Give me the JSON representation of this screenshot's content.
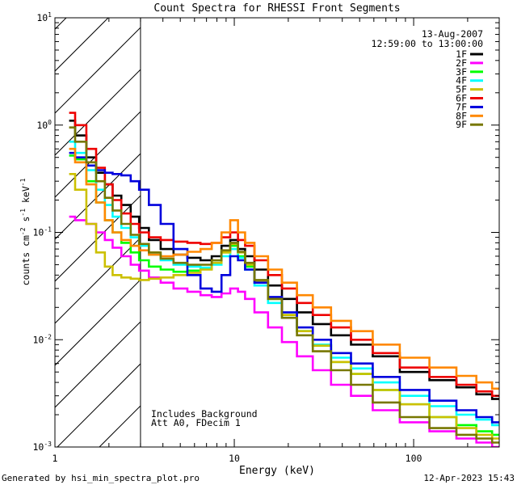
{
  "chart_data": {
    "type": "line",
    "step": true,
    "title": "Count Spectra for RHESSI Front Segments",
    "xlabel": "Energy (keV)",
    "ylabel_parts": {
      "pre": "counts cm",
      "exp1": "-2",
      "mid": " s",
      "exp2": "-1",
      "post": " keV",
      "exp3": "-1"
    },
    "x_scale": "log",
    "y_scale": "log",
    "xlim": [
      1,
      300
    ],
    "ylim": [
      0.001,
      10
    ],
    "x_ticks": [
      {
        "value": 1,
        "label": "1"
      },
      {
        "value": 10,
        "label": "10"
      },
      {
        "value": 100,
        "label": "100"
      }
    ],
    "y_ticks": [
      {
        "value": 10,
        "base": "10",
        "exp": "1"
      },
      {
        "value": 1,
        "base": "10",
        "exp": "0"
      },
      {
        "value": 0.1,
        "base": "10",
        "exp": "-1"
      },
      {
        "value": 0.01,
        "base": "10",
        "exp": "-2"
      },
      {
        "value": 0.001,
        "base": "10",
        "exp": "-3"
      }
    ],
    "date": "13-Aug-2007",
    "time_range": "12:59:00 to 13:00:00",
    "shaded_region_kev": [
      1,
      3
    ],
    "annotations": [
      "Includes Background",
      "Att A0, FDecim 1"
    ],
    "series": [
      {
        "name": "1F",
        "color": "#000000",
        "x": [
          1.2,
          1.4,
          1.6,
          1.8,
          2.0,
          2.2,
          2.5,
          2.8,
          3.1,
          3.6,
          4.2,
          5.0,
          6.0,
          7.0,
          8.0,
          9.0,
          10.0,
          11.0,
          12.0,
          14.0,
          17.0,
          20.0,
          25.0,
          30.0,
          40.0,
          50.0,
          70.0,
          100.0,
          150.0,
          200.0,
          250.0,
          300.0
        ],
        "values": [
          1.1,
          0.8,
          0.5,
          0.36,
          0.28,
          0.22,
          0.18,
          0.14,
          0.11,
          0.085,
          0.07,
          0.062,
          0.058,
          0.055,
          0.06,
          0.075,
          0.085,
          0.07,
          0.06,
          0.045,
          0.032,
          0.024,
          0.018,
          0.014,
          0.011,
          0.009,
          0.007,
          0.005,
          0.0042,
          0.0036,
          0.0031,
          0.0028
        ]
      },
      {
        "name": "2F",
        "color": "#ff00ff",
        "x": [
          1.2,
          1.4,
          1.6,
          1.8,
          2.0,
          2.2,
          2.5,
          2.8,
          3.1,
          3.6,
          4.2,
          5.0,
          6.0,
          7.0,
          8.0,
          9.0,
          10.0,
          11.0,
          12.0,
          14.0,
          17.0,
          20.0,
          25.0,
          30.0,
          40.0,
          50.0,
          70.0,
          100.0,
          150.0,
          200.0,
          250.0,
          300.0
        ],
        "values": [
          0.14,
          0.13,
          0.12,
          0.1,
          0.085,
          0.072,
          0.06,
          0.05,
          0.044,
          0.038,
          0.034,
          0.03,
          0.028,
          0.026,
          0.025,
          0.027,
          0.03,
          0.028,
          0.024,
          0.018,
          0.013,
          0.0095,
          0.007,
          0.0052,
          0.0038,
          0.003,
          0.0022,
          0.0017,
          0.0014,
          0.0012,
          0.0011,
          0.001
        ]
      },
      {
        "name": "3F",
        "color": "#00ff00",
        "x": [
          1.2,
          1.4,
          1.6,
          1.8,
          2.0,
          2.2,
          2.5,
          2.8,
          3.1,
          3.6,
          4.2,
          5.0,
          6.0,
          7.0,
          8.0,
          9.0,
          10.0,
          11.0,
          12.0,
          14.0,
          17.0,
          20.0,
          25.0,
          30.0,
          40.0,
          50.0,
          70.0,
          100.0,
          150.0,
          200.0,
          250.0,
          300.0
        ],
        "values": [
          0.52,
          0.48,
          0.3,
          0.19,
          0.13,
          0.1,
          0.08,
          0.065,
          0.055,
          0.048,
          0.045,
          0.043,
          0.044,
          0.046,
          0.052,
          0.065,
          0.075,
          0.06,
          0.048,
          0.034,
          0.024,
          0.017,
          0.012,
          0.0088,
          0.0062,
          0.0048,
          0.0034,
          0.0025,
          0.0019,
          0.0016,
          0.0014,
          0.0013
        ]
      },
      {
        "name": "4F",
        "color": "#00ffff",
        "x": [
          1.2,
          1.4,
          1.6,
          1.8,
          2.0,
          2.2,
          2.5,
          2.8,
          3.1,
          3.6,
          4.2,
          5.0,
          6.0,
          7.0,
          8.0,
          9.0,
          10.0,
          11.0,
          12.0,
          14.0,
          17.0,
          20.0,
          25.0,
          30.0,
          40.0,
          50.0,
          70.0,
          100.0,
          150.0,
          200.0,
          250.0,
          300.0
        ],
        "values": [
          0.7,
          0.55,
          0.38,
          0.25,
          0.18,
          0.14,
          0.11,
          0.09,
          0.075,
          0.062,
          0.055,
          0.05,
          0.048,
          0.047,
          0.05,
          0.06,
          0.07,
          0.058,
          0.045,
          0.032,
          0.022,
          0.016,
          0.012,
          0.009,
          0.0068,
          0.0054,
          0.004,
          0.003,
          0.0024,
          0.002,
          0.0018,
          0.0016
        ]
      },
      {
        "name": "5F",
        "color": "#ccc000",
        "x": [
          1.2,
          1.4,
          1.6,
          1.8,
          2.0,
          2.2,
          2.5,
          2.8,
          3.1,
          3.6,
          4.2,
          5.0,
          6.0,
          7.0,
          8.0,
          9.0,
          10.0,
          11.0,
          12.0,
          14.0,
          17.0,
          20.0,
          25.0,
          30.0,
          40.0,
          50.0,
          70.0,
          100.0,
          150.0,
          200.0,
          250.0,
          300.0
        ],
        "values": [
          0.35,
          0.25,
          0.12,
          0.065,
          0.048,
          0.04,
          0.038,
          0.037,
          0.036,
          0.037,
          0.038,
          0.04,
          0.042,
          0.045,
          0.052,
          0.065,
          0.078,
          0.065,
          0.05,
          0.035,
          0.024,
          0.017,
          0.012,
          0.0088,
          0.0062,
          0.0048,
          0.0034,
          0.0025,
          0.0019,
          0.0015,
          0.0013,
          0.0012
        ]
      },
      {
        "name": "6F",
        "color": "#ee0000",
        "x": [
          1.2,
          1.4,
          1.6,
          1.8,
          2.0,
          2.2,
          2.5,
          2.8,
          3.1,
          3.6,
          4.2,
          5.0,
          6.0,
          7.0,
          8.0,
          9.0,
          10.0,
          11.0,
          12.0,
          14.0,
          17.0,
          20.0,
          25.0,
          30.0,
          40.0,
          50.0,
          70.0,
          100.0,
          150.0,
          200.0,
          250.0,
          300.0
        ],
        "values": [
          1.3,
          1.0,
          0.6,
          0.4,
          0.28,
          0.2,
          0.15,
          0.12,
          0.1,
          0.09,
          0.085,
          0.082,
          0.08,
          0.078,
          0.08,
          0.09,
          0.1,
          0.085,
          0.075,
          0.055,
          0.04,
          0.03,
          0.022,
          0.017,
          0.013,
          0.01,
          0.0075,
          0.0055,
          0.0045,
          0.0038,
          0.0033,
          0.003
        ]
      },
      {
        "name": "7F",
        "color": "#0000dd",
        "x": [
          1.2,
          1.4,
          1.6,
          1.8,
          2.0,
          2.2,
          2.5,
          2.8,
          3.1,
          3.6,
          4.2,
          5.0,
          6.0,
          7.0,
          8.0,
          9.0,
          10.0,
          11.0,
          12.0,
          14.0,
          17.0,
          20.0,
          25.0,
          30.0,
          40.0,
          50.0,
          70.0,
          100.0,
          150.0,
          200.0,
          250.0,
          300.0
        ],
        "values": [
          0.55,
          0.5,
          0.42,
          0.38,
          0.36,
          0.35,
          0.34,
          0.3,
          0.25,
          0.18,
          0.12,
          0.07,
          0.04,
          0.03,
          0.028,
          0.04,
          0.06,
          0.055,
          0.045,
          0.034,
          0.025,
          0.018,
          0.013,
          0.01,
          0.0075,
          0.006,
          0.0045,
          0.0034,
          0.0027,
          0.0022,
          0.0019,
          0.0017
        ]
      },
      {
        "name": "8F",
        "color": "#ff8800",
        "x": [
          1.2,
          1.4,
          1.6,
          1.8,
          2.0,
          2.2,
          2.5,
          2.8,
          3.1,
          3.6,
          4.2,
          5.0,
          6.0,
          7.0,
          8.0,
          9.0,
          10.0,
          11.0,
          12.0,
          14.0,
          17.0,
          20.0,
          25.0,
          30.0,
          40.0,
          50.0,
          70.0,
          100.0,
          150.0,
          200.0,
          250.0,
          300.0
        ],
        "values": [
          0.6,
          0.45,
          0.28,
          0.19,
          0.13,
          0.1,
          0.085,
          0.075,
          0.068,
          0.062,
          0.06,
          0.062,
          0.066,
          0.07,
          0.08,
          0.1,
          0.13,
          0.1,
          0.08,
          0.06,
          0.045,
          0.034,
          0.026,
          0.02,
          0.015,
          0.012,
          0.009,
          0.0068,
          0.0055,
          0.0046,
          0.004,
          0.0035
        ]
      },
      {
        "name": "9F",
        "color": "#777700",
        "x": [
          1.2,
          1.4,
          1.6,
          1.8,
          2.0,
          2.2,
          2.5,
          2.8,
          3.1,
          3.6,
          4.2,
          5.0,
          6.0,
          7.0,
          8.0,
          9.0,
          10.0,
          11.0,
          12.0,
          14.0,
          17.0,
          20.0,
          25.0,
          30.0,
          40.0,
          50.0,
          70.0,
          100.0,
          150.0,
          200.0,
          250.0,
          300.0
        ],
        "values": [
          0.95,
          0.7,
          0.45,
          0.3,
          0.21,
          0.16,
          0.12,
          0.095,
          0.078,
          0.065,
          0.057,
          0.052,
          0.05,
          0.05,
          0.055,
          0.068,
          0.08,
          0.066,
          0.052,
          0.036,
          0.024,
          0.016,
          0.011,
          0.0078,
          0.0052,
          0.0038,
          0.0026,
          0.0019,
          0.0015,
          0.0013,
          0.0012,
          0.0011
        ]
      }
    ]
  },
  "footer": {
    "generated_by": "Generated by hsi_min_spectra_plot.pro",
    "timestamp": "12-Apr-2023 15:43"
  }
}
